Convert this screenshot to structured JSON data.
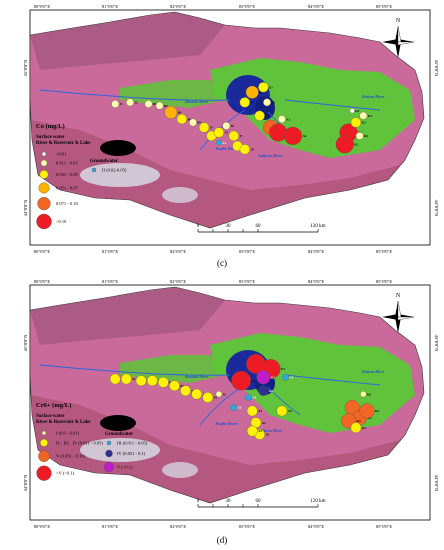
{
  "maps": [
    {
      "id": "c",
      "caption": "(c)",
      "legend_title": "Co (mg/L)",
      "surface_label_1": "Surface water",
      "surface_label_2": "River & Reservoir & Lake",
      "groundwater_label": "Groundwater",
      "classes": [
        {
          "label": "<0.01",
          "color": "#ffffff"
        },
        {
          "label": "0.011 - 0.03",
          "color": "#ffffb0"
        },
        {
          "label": "0.031 - 0.05",
          "color": "#fff200"
        },
        {
          "label": "0.051 - 0.07",
          "color": "#ffb300"
        },
        {
          "label": "0.071 - 0.10",
          "color": "#f26522"
        },
        {
          "label": ">0.10",
          "color": "#ed1c24"
        }
      ],
      "groundwater_classes": [
        {
          "label": "II (0.02-0.05)",
          "color": "#29abe2"
        }
      ],
      "rivers": [
        "Bortala River",
        "Jinghe River",
        "Aqikesu River",
        "Kuitun River"
      ],
      "sites": [
        {
          "id": "J1",
          "lon": 80.95,
          "lat": 44.89,
          "class": 1
        },
        {
          "id": "J2",
          "lon": 81.15,
          "lat": 44.9,
          "class": 1
        },
        {
          "id": "B1",
          "lon": 81.4,
          "lat": 44.89,
          "class": 1
        },
        {
          "id": "B2",
          "lon": 81.55,
          "lat": 44.88,
          "class": 1
        },
        {
          "id": "B3",
          "lon": 81.7,
          "lat": 44.84,
          "class": 3
        },
        {
          "id": "B4",
          "lon": 81.85,
          "lat": 44.8,
          "class": 2
        },
        {
          "id": "B5",
          "lon": 82.0,
          "lat": 44.78,
          "class": 1
        },
        {
          "id": "J3",
          "lon": 82.15,
          "lat": 44.75,
          "class": 2
        },
        {
          "id": "J4",
          "lon": 82.25,
          "lat": 44.7,
          "class": 2
        },
        {
          "id": "J5",
          "lon": 82.35,
          "lat": 44.72,
          "class": 2
        },
        {
          "id": "J6",
          "lon": 82.45,
          "lat": 44.76,
          "class": 1
        },
        {
          "id": "J7",
          "lon": 82.55,
          "lat": 44.7,
          "class": 2
        },
        {
          "id": "J8",
          "lon": 82.6,
          "lat": 44.64,
          "class": 2
        },
        {
          "id": "J9",
          "lon": 82.7,
          "lat": 44.62,
          "class": 2
        },
        {
          "id": "E1",
          "lon": 82.7,
          "lat": 44.9,
          "class": 2
        },
        {
          "id": "E2",
          "lon": 82.8,
          "lat": 44.96,
          "class": 3
        },
        {
          "id": "E3",
          "lon": 82.95,
          "lat": 44.99,
          "class": 2
        },
        {
          "id": "E4",
          "lon": 83.0,
          "lat": 44.9,
          "class": 1
        },
        {
          "id": "E5",
          "lon": 82.9,
          "lat": 44.82,
          "class": 2
        },
        {
          "id": "A1",
          "lon": 83.2,
          "lat": 44.8,
          "class": 1
        },
        {
          "id": "A2",
          "lon": 83.05,
          "lat": 44.75,
          "class": 4
        },
        {
          "id": "A3",
          "lon": 83.15,
          "lat": 44.72,
          "class": 5
        },
        {
          "id": "A4",
          "lon": 83.35,
          "lat": 44.7,
          "class": 5
        },
        {
          "id": "K1",
          "lon": 84.1,
          "lat": 44.72,
          "class": 5
        },
        {
          "id": "K2",
          "lon": 84.05,
          "lat": 44.65,
          "class": 5
        },
        {
          "id": "K3",
          "lon": 84.2,
          "lat": 44.78,
          "class": 2
        },
        {
          "id": "K4",
          "lon": 84.3,
          "lat": 44.82,
          "class": 1
        },
        {
          "id": "K5",
          "lon": 84.15,
          "lat": 44.85,
          "class": 0
        },
        {
          "id": "K6",
          "lon": 84.25,
          "lat": 44.7,
          "class": 1
        }
      ],
      "gw_sites": [
        {
          "id": "G1",
          "lon": 82.35,
          "lat": 44.66,
          "class": 0
        }
      ]
    },
    {
      "id": "d",
      "caption": "(d)",
      "legend_title": "Cr6+ (mg/L)",
      "surface_label_1": "Surface water",
      "surface_label_2": "River & Reservoir & Lake",
      "groundwater_label": "Groundwater",
      "classes": [
        {
          "label": "I (0.0 - 0.01)",
          "color": "#ffff99"
        },
        {
          "label": "II、III、IV (0.011 - 0.05)",
          "color": "#fff200"
        },
        {
          "label": "V (0.051 - 0.10)",
          "color": "#f26522"
        },
        {
          "label": ">V (>0.1)",
          "color": "#ed1c24"
        }
      ],
      "groundwater_classes": [
        {
          "label": "III (0.011 - 0.05)",
          "color": "#29abe2"
        },
        {
          "label": "IV (0.051 - 0.1)",
          "color": "#2e3192"
        },
        {
          "label": "V (>0.1)",
          "color": "#bd1ec9"
        }
      ],
      "rivers": [
        "Bortala River",
        "Jinghe River",
        "Aqikesu River",
        "Kuitun River"
      ],
      "sites": [
        {
          "id": "J1",
          "lon": 80.95,
          "lat": 44.89,
          "class": 1
        },
        {
          "id": "J2",
          "lon": 81.1,
          "lat": 44.89,
          "class": 1
        },
        {
          "id": "B1",
          "lon": 81.3,
          "lat": 44.88,
          "class": 1
        },
        {
          "id": "B2",
          "lon": 81.45,
          "lat": 44.88,
          "class": 1
        },
        {
          "id": "B3",
          "lon": 81.6,
          "lat": 44.87,
          "class": 1
        },
        {
          "id": "B4",
          "lon": 81.75,
          "lat": 44.85,
          "class": 1
        },
        {
          "id": "B5",
          "lon": 81.9,
          "lat": 44.82,
          "class": 1
        },
        {
          "id": "J3",
          "lon": 82.05,
          "lat": 44.8,
          "class": 1
        },
        {
          "id": "J4",
          "lon": 82.2,
          "lat": 44.78,
          "class": 1
        },
        {
          "id": "J5",
          "lon": 82.35,
          "lat": 44.8,
          "class": 0
        },
        {
          "id": "E1",
          "lon": 82.65,
          "lat": 44.88,
          "class": 3
        },
        {
          "id": "E2",
          "lon": 82.85,
          "lat": 44.98,
          "class": 3
        },
        {
          "id": "E3",
          "lon": 83.05,
          "lat": 44.95,
          "class": 3
        },
        {
          "id": "A1",
          "lon": 82.8,
          "lat": 44.7,
          "class": 1
        },
        {
          "id": "A2",
          "lon": 82.85,
          "lat": 44.63,
          "class": 1
        },
        {
          "id": "A3",
          "lon": 82.9,
          "lat": 44.56,
          "class": 1
        },
        {
          "id": "A4",
          "lon": 82.8,
          "lat": 44.58,
          "class": 1
        },
        {
          "id": "A5",
          "lon": 83.2,
          "lat": 44.7,
          "class": 1
        },
        {
          "id": "K1",
          "lon": 84.15,
          "lat": 44.72,
          "class": 2
        },
        {
          "id": "K2",
          "lon": 84.25,
          "lat": 44.66,
          "class": 2
        },
        {
          "id": "K3",
          "lon": 84.35,
          "lat": 44.7,
          "class": 2
        },
        {
          "id": "K4",
          "lon": 84.1,
          "lat": 44.64,
          "class": 2
        },
        {
          "id": "K5",
          "lon": 84.2,
          "lat": 44.6,
          "class": 1
        },
        {
          "id": "K6",
          "lon": 84.3,
          "lat": 44.8,
          "class": 0
        }
      ],
      "gw_sites": [
        {
          "id": "G1",
          "lon": 82.95,
          "lat": 44.9,
          "class": 2
        },
        {
          "id": "G2",
          "lon": 82.95,
          "lat": 44.82,
          "class": 1
        },
        {
          "id": "G3",
          "lon": 82.75,
          "lat": 44.78,
          "class": 0
        },
        {
          "id": "G4",
          "lon": 83.25,
          "lat": 44.9,
          "class": 0
        },
        {
          "id": "G5",
          "lon": 82.55,
          "lat": 44.72,
          "class": 0
        }
      ]
    }
  ],
  "axis": {
    "lon_ticks": [
      "80°0'0\"E",
      "81°0'0\"E",
      "82°0'0\"E",
      "83°0'0\"E",
      "84°0'0\"E",
      "85°0'0\"E"
    ],
    "lat_ticks": [
      "45°0'0\"N",
      "44°0'0\"N"
    ]
  },
  "scale_bar": {
    "labels": [
      "0",
      "30",
      "60",
      "120 km"
    ]
  },
  "north_label": "N",
  "colors": {
    "desert_pink": "#c96a9a",
    "vegetation_green": "#4ed22a",
    "water_blue": "#1a2a9a",
    "snow": "#d8e4ea"
  }
}
